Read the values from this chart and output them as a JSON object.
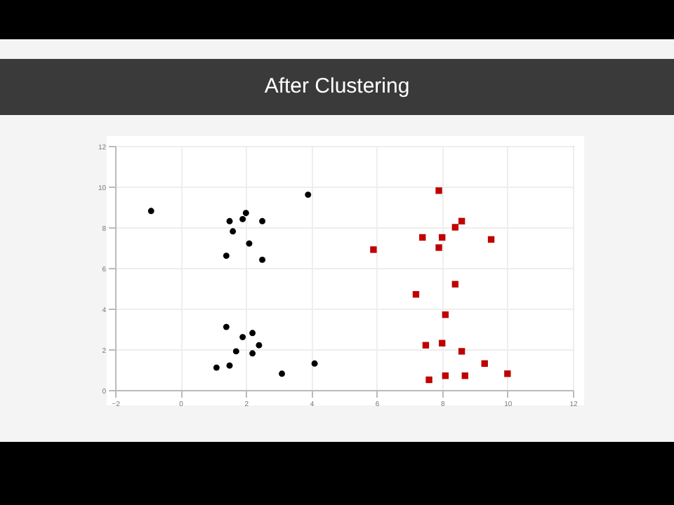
{
  "chart_data": {
    "type": "scatter",
    "title": "After Clustering",
    "xlim": [
      -2,
      12
    ],
    "ylim": [
      0,
      12
    ],
    "xticks": [
      -2,
      0,
      2,
      4,
      6,
      8,
      10,
      12
    ],
    "yticks": [
      0,
      2,
      4,
      6,
      8,
      10,
      12
    ],
    "grid": true,
    "series": [
      {
        "color": "#000000",
        "marker": "circle",
        "x": [
          -0.9,
          1.5,
          1.9,
          2.0,
          2.5,
          1.6,
          2.1,
          1.4,
          2.5,
          3.9,
          1.4,
          2.2,
          1.9,
          2.4,
          1.7,
          2.2,
          1.5,
          1.1,
          3.1,
          4.1
        ],
        "values": [
          8.8,
          8.3,
          8.4,
          8.7,
          8.3,
          7.8,
          7.2,
          6.6,
          6.4,
          9.6,
          3.1,
          2.8,
          2.6,
          2.2,
          1.9,
          1.8,
          1.2,
          1.1,
          0.8,
          1.3
        ]
      },
      {
        "color": "#c00000",
        "marker": "square",
        "x": [
          7.9,
          8.6,
          8.4,
          7.4,
          8.0,
          9.5,
          7.9,
          5.9,
          8.4,
          7.2,
          8.1,
          7.5,
          8.0,
          8.6,
          9.3,
          7.6,
          8.1,
          8.7,
          10.0
        ],
        "values": [
          9.8,
          8.3,
          8.0,
          7.5,
          7.5,
          7.4,
          7.0,
          6.9,
          5.2,
          4.7,
          3.7,
          2.2,
          2.3,
          1.9,
          1.3,
          0.5,
          0.7,
          0.7,
          0.8
        ]
      }
    ]
  }
}
